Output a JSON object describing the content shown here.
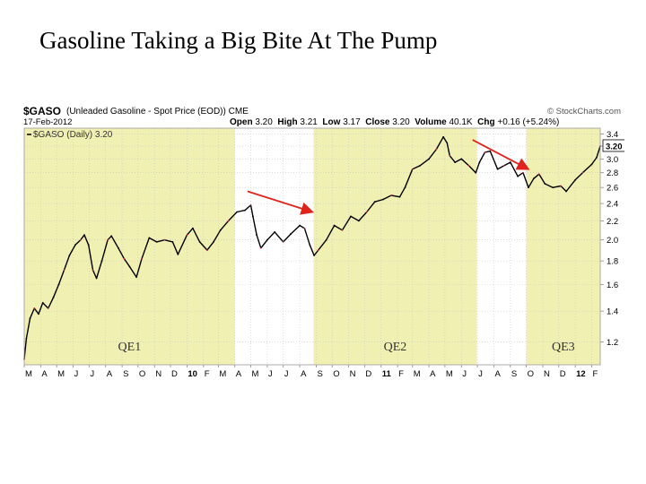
{
  "slide": {
    "title": "Gasoline Taking a Big Bite At The Pump"
  },
  "header": {
    "symbol": "$GASO",
    "description": "(Unleaded Gasoline - Spot Price (EOD))",
    "exchange": "CME",
    "copyright": "© StockCharts.com",
    "date": "17-Feb-2012",
    "open_label": "Open",
    "open": "3.20",
    "high_label": "High",
    "high": "3.21",
    "low_label": "Low",
    "low": "3.17",
    "close_label": "Close",
    "close": "3.20",
    "volume_label": "Volume",
    "volume": "40.1K",
    "chg_label": "Chg",
    "chg": "+0.16 (+5.24%)"
  },
  "chart_data": {
    "type": "line",
    "title": "$GASO (Daily) 3.20",
    "legend": "$GASO (Daily) 3.20",
    "last_value": "3.20",
    "y_scale": "log",
    "ylim": [
      1.07,
      3.5
    ],
    "y_ticks": [
      "1.2",
      "1.4",
      "1.6",
      "1.8",
      "2.0",
      "2.2",
      "2.4",
      "2.6",
      "2.8",
      "3.0",
      "3.2",
      "3.4"
    ],
    "x_tick_labels": [
      "M",
      "A",
      "M",
      "J",
      "J",
      "A",
      "S",
      "O",
      "N",
      "D",
      "10",
      "F",
      "M",
      "A",
      "M",
      "J",
      "J",
      "A",
      "S",
      "O",
      "N",
      "D",
      "11",
      "F",
      "M",
      "A",
      "M",
      "J",
      "J",
      "A",
      "S",
      "O",
      "N",
      "D",
      "12",
      "F"
    ],
    "x_range": [
      "2009-03-01",
      "2012-02-17"
    ],
    "series": [
      {
        "color": "#000000",
        "points": [
          [
            "2009-03-01",
            1.1
          ],
          [
            "2009-03-05",
            1.22
          ],
          [
            "2009-03-12",
            1.35
          ],
          [
            "2009-03-20",
            1.42
          ],
          [
            "2009-03-28",
            1.38
          ],
          [
            "2009-04-05",
            1.46
          ],
          [
            "2009-04-15",
            1.42
          ],
          [
            "2009-04-25",
            1.5
          ],
          [
            "2009-05-05",
            1.6
          ],
          [
            "2009-05-15",
            1.72
          ],
          [
            "2009-05-25",
            1.85
          ],
          [
            "2009-06-05",
            1.95
          ],
          [
            "2009-06-15",
            2.0
          ],
          [
            "2009-06-22",
            2.05
          ],
          [
            "2009-06-30",
            1.95
          ],
          [
            "2009-07-08",
            1.72
          ],
          [
            "2009-07-15",
            1.65
          ],
          [
            "2009-07-25",
            1.8
          ],
          [
            "2009-08-05",
            2.0
          ],
          [
            "2009-08-12",
            2.04
          ],
          [
            "2009-08-25",
            1.92
          ],
          [
            "2009-09-05",
            1.82
          ],
          [
            "2009-09-15",
            1.75
          ],
          [
            "2009-09-28",
            1.66
          ],
          [
            "2009-10-08",
            1.82
          ],
          [
            "2009-10-22",
            2.02
          ],
          [
            "2009-11-05",
            1.98
          ],
          [
            "2009-11-20",
            2.0
          ],
          [
            "2009-12-05",
            1.98
          ],
          [
            "2009-12-15",
            1.86
          ],
          [
            "2010-01-01",
            2.05
          ],
          [
            "2010-01-12",
            2.12
          ],
          [
            "2010-01-25",
            1.98
          ],
          [
            "2010-02-08",
            1.9
          ],
          [
            "2010-02-20",
            1.98
          ],
          [
            "2010-03-05",
            2.1
          ],
          [
            "2010-03-20",
            2.2
          ],
          [
            "2010-04-05",
            2.3
          ],
          [
            "2010-04-20",
            2.32
          ],
          [
            "2010-05-01",
            2.38
          ],
          [
            "2010-05-05",
            2.25
          ],
          [
            "2010-05-12",
            2.05
          ],
          [
            "2010-05-20",
            1.92
          ],
          [
            "2010-06-01",
            2.0
          ],
          [
            "2010-06-15",
            2.08
          ],
          [
            "2010-07-01",
            1.98
          ],
          [
            "2010-07-15",
            2.06
          ],
          [
            "2010-08-01",
            2.15
          ],
          [
            "2010-08-10",
            2.12
          ],
          [
            "2010-08-20",
            1.95
          ],
          [
            "2010-08-28",
            1.85
          ],
          [
            "2010-09-05",
            1.9
          ],
          [
            "2010-09-20",
            2.0
          ],
          [
            "2010-10-05",
            2.15
          ],
          [
            "2010-10-20",
            2.1
          ],
          [
            "2010-11-05",
            2.25
          ],
          [
            "2010-11-20",
            2.2
          ],
          [
            "2010-12-05",
            2.3
          ],
          [
            "2010-12-20",
            2.42
          ],
          [
            "2011-01-05",
            2.45
          ],
          [
            "2011-01-20",
            2.5
          ],
          [
            "2011-02-05",
            2.48
          ],
          [
            "2011-02-15",
            2.6
          ],
          [
            "2011-03-01",
            2.85
          ],
          [
            "2011-03-15",
            2.9
          ],
          [
            "2011-04-01",
            3.0
          ],
          [
            "2011-04-15",
            3.15
          ],
          [
            "2011-04-28",
            3.35
          ],
          [
            "2011-05-05",
            3.25
          ],
          [
            "2011-05-10",
            3.05
          ],
          [
            "2011-05-20",
            2.95
          ],
          [
            "2011-06-01",
            3.0
          ],
          [
            "2011-06-15",
            2.9
          ],
          [
            "2011-06-28",
            2.8
          ],
          [
            "2011-07-05",
            2.95
          ],
          [
            "2011-07-15",
            3.1
          ],
          [
            "2011-07-25",
            3.12
          ],
          [
            "2011-08-08",
            2.85
          ],
          [
            "2011-08-20",
            2.9
          ],
          [
            "2011-09-01",
            2.95
          ],
          [
            "2011-09-15",
            2.75
          ],
          [
            "2011-09-25",
            2.8
          ],
          [
            "2011-10-05",
            2.6
          ],
          [
            "2011-10-15",
            2.72
          ],
          [
            "2011-10-25",
            2.78
          ],
          [
            "2011-11-05",
            2.65
          ],
          [
            "2011-11-20",
            2.6
          ],
          [
            "2011-12-05",
            2.62
          ],
          [
            "2011-12-15",
            2.55
          ],
          [
            "2012-01-01",
            2.7
          ],
          [
            "2012-01-15",
            2.8
          ],
          [
            "2012-02-01",
            2.92
          ],
          [
            "2012-02-10",
            3.02
          ],
          [
            "2012-02-17",
            3.2
          ]
        ]
      }
    ],
    "shaded_periods": [
      {
        "label": "QE1",
        "start": "2009-03-01",
        "end": "2010-04-01",
        "color": "#f1f0b3"
      },
      {
        "label": "QE2",
        "start": "2010-08-27",
        "end": "2011-06-30",
        "color": "#f1f0b3"
      },
      {
        "label": "QE3",
        "start": "2011-10-01",
        "end": "2012-02-29",
        "color": "#f1f0b3"
      }
    ],
    "annotations": [
      {
        "type": "arrow",
        "color": "#e0241b",
        "from": [
          "2010-04-25",
          2.55
        ],
        "to": [
          "2010-08-25",
          2.3
        ]
      },
      {
        "type": "arrow",
        "color": "#e0241b",
        "from": [
          "2011-06-22",
          3.3
        ],
        "to": [
          "2011-10-05",
          2.85
        ]
      }
    ],
    "grid": true,
    "legend_position": "top-left"
  }
}
